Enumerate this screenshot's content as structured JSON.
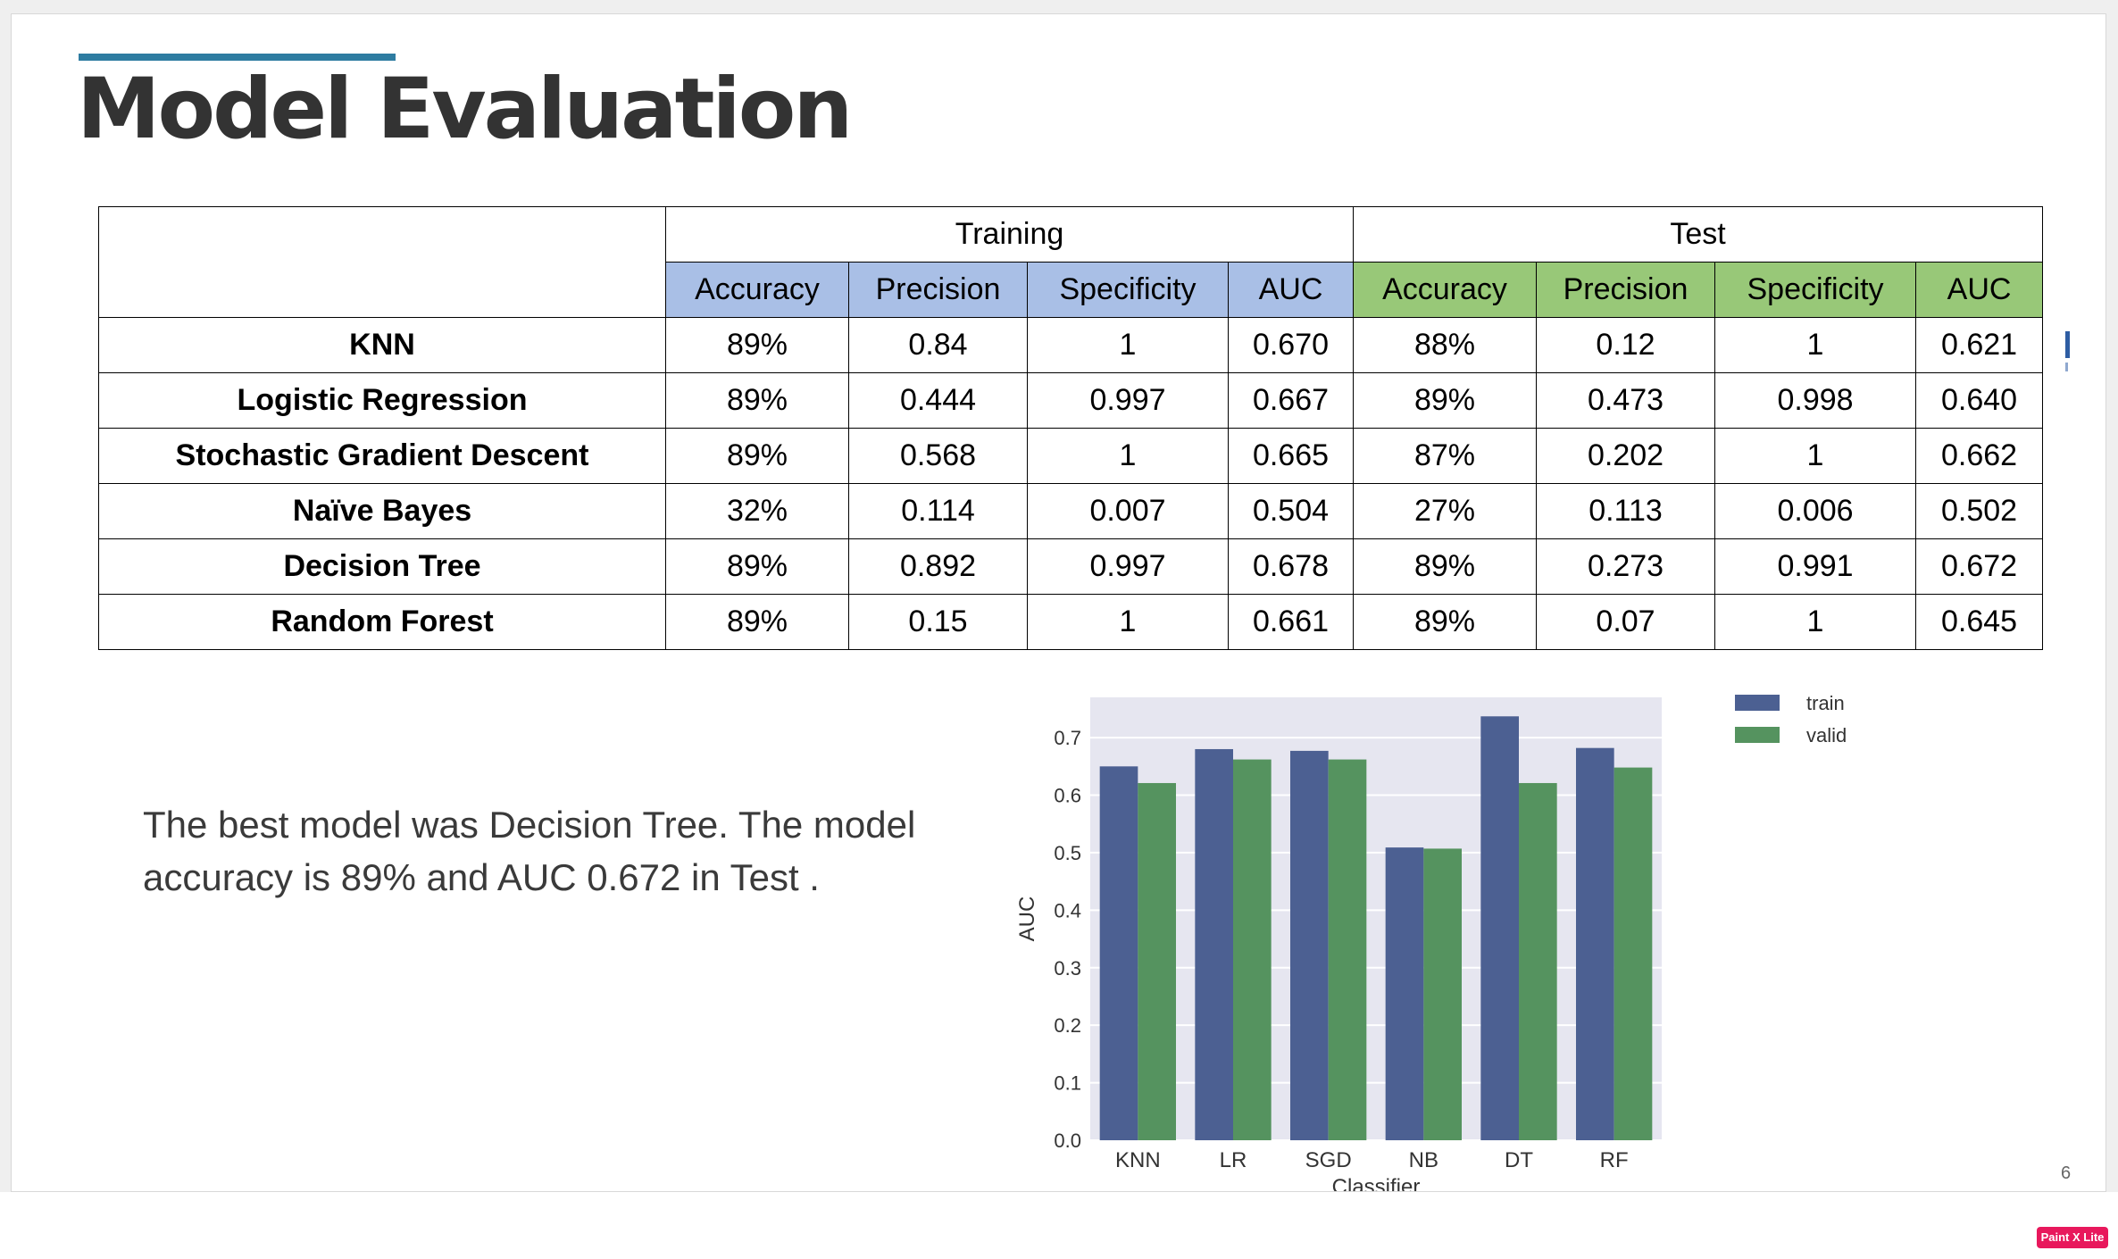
{
  "slide": {
    "title": "Model Evaluation",
    "summary": "The best model was Decision Tree. The model accuracy is 89% and AUC 0.672 in Test ."
  },
  "table": {
    "groups": [
      "Training",
      "Test"
    ],
    "columns": [
      "Accuracy",
      "Precision",
      "Specificity",
      "AUC",
      "Accuracy",
      "Precision",
      "Specificity",
      "AUC"
    ],
    "rows": [
      {
        "model": "KNN",
        "values": [
          "89%",
          "0.84",
          "1",
          "0.670",
          "88%",
          "0.12",
          "1",
          "0.621"
        ]
      },
      {
        "model": "Logistic Regression",
        "values": [
          "89%",
          "0.444",
          "0.997",
          "0.667",
          "89%",
          "0.473",
          "0.998",
          "0.640"
        ]
      },
      {
        "model": "Stochastic Gradient Descent",
        "values": [
          "89%",
          "0.568",
          "1",
          "0.665",
          "87%",
          "0.202",
          "1",
          "0.662"
        ]
      },
      {
        "model": "Naïve Bayes",
        "values": [
          "32%",
          "0.114",
          "0.007",
          "0.504",
          "27%",
          "0.113",
          "0.006",
          "0.502"
        ]
      },
      {
        "model": "Decision Tree",
        "values": [
          "89%",
          "0.892",
          "0.997",
          "0.678",
          "89%",
          "0.273",
          "0.991",
          "0.672"
        ]
      },
      {
        "model": "Random Forest",
        "values": [
          "89%",
          "0.15",
          "1",
          "0.661",
          "89%",
          "0.07",
          "1",
          "0.645"
        ]
      }
    ]
  },
  "chart_data": {
    "type": "bar",
    "categories": [
      "KNN",
      "LR",
      "SGD",
      "NB",
      "DT",
      "RF"
    ],
    "series": [
      {
        "name": "train",
        "values": [
          0.65,
          0.68,
          0.677,
          0.509,
          0.737,
          0.682
        ]
      },
      {
        "name": "valid",
        "values": [
          0.621,
          0.662,
          0.662,
          0.507,
          0.621,
          0.648
        ]
      }
    ],
    "xlabel": "Classifier",
    "ylabel": "AUC",
    "ylim": [
      0,
      0.77
    ],
    "yticks": [
      "0.0",
      "0.1",
      "0.2",
      "0.3",
      "0.4",
      "0.5",
      "0.6",
      "0.7"
    ],
    "grid": true,
    "legend": "outside-right-top",
    "colors": {
      "train": "#4c6092",
      "valid": "#55935f",
      "plot_background": "#e6e6f0"
    }
  },
  "footer": {
    "page_number": "6",
    "badge": "Paint X Lite"
  },
  "colors": {
    "accent": "#2e7ca1",
    "title": "#333333",
    "training_header": "#a9bfe6",
    "test_header": "#98c878"
  }
}
